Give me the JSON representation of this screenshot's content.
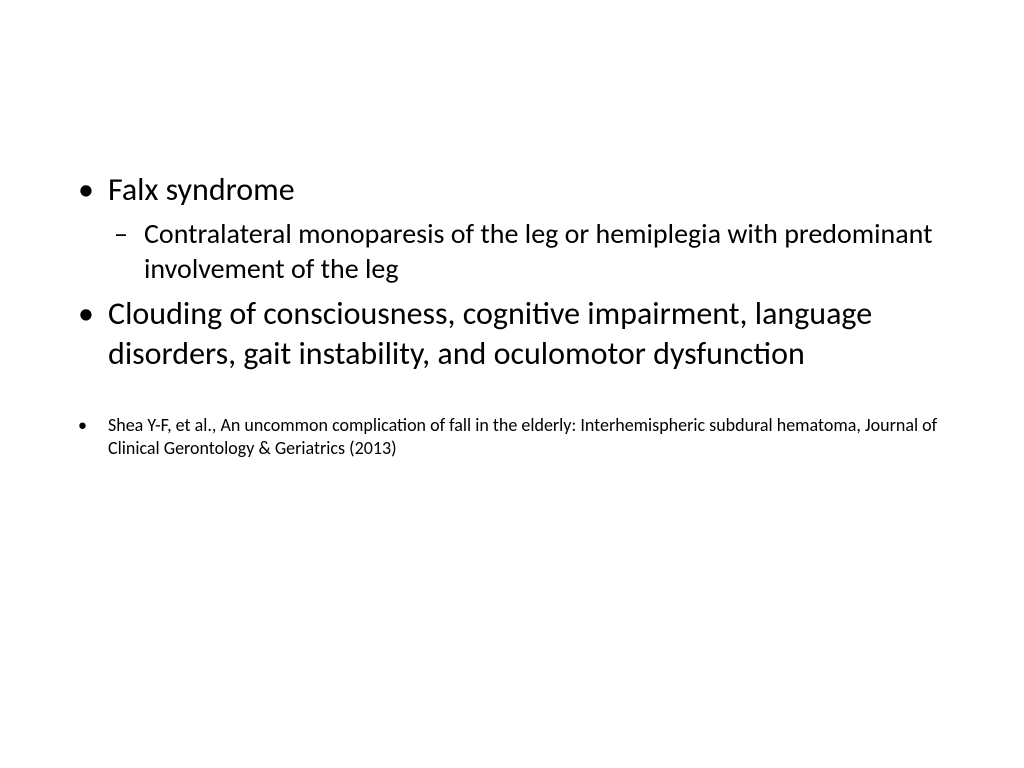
{
  "slide": {
    "background_color": "#ffffff",
    "text_color": "#000000",
    "font_family": "Calibri",
    "bullets": {
      "level1_marker": "•",
      "level2_marker": "–",
      "items": [
        {
          "text": "Falx syndrome",
          "fontsize": 32,
          "sub": [
            {
              "text": "Contralateral monoparesis of the leg or hemiplegia with predominant involvement of the leg",
              "fontsize": 28
            }
          ]
        },
        {
          "text": "Clouding of consciousness, cognitive impairment, language disorders, gait instability, and oculomotor dysfunction",
          "fontsize": 32
        },
        {
          "text": "Shea Y-F, et al., An uncommon complication of fall in the elderly: Interhemispheric subdural hematoma, Journal of Clinical Gerontology & Geriatrics (2013)",
          "fontsize": 18,
          "is_citation": true
        }
      ]
    }
  }
}
